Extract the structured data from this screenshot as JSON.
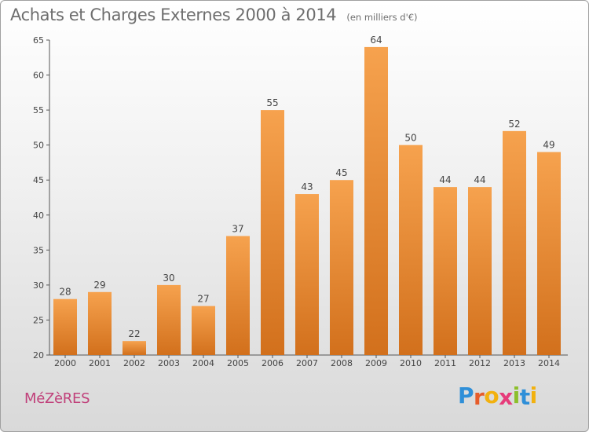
{
  "chart_data": {
    "type": "bar",
    "title": "Achats et Charges Externes 2000 à 2014",
    "subtitle": "(en milliers d'€)",
    "categories": [
      "2000",
      "2001",
      "2002",
      "2003",
      "2004",
      "2005",
      "2006",
      "2007",
      "2008",
      "2009",
      "2010",
      "2011",
      "2012",
      "2013",
      "2014"
    ],
    "values": [
      28,
      29,
      22,
      30,
      27,
      37,
      55,
      43,
      45,
      64,
      50,
      44,
      44,
      52,
      49
    ],
    "ylim": [
      20,
      65
    ],
    "yticks": [
      20,
      25,
      30,
      35,
      40,
      45,
      50,
      55,
      60,
      65
    ],
    "xlabel": "",
    "ylabel": "",
    "grid": false,
    "bar_color_top": "#f6a24e",
    "bar_color_bottom": "#d2701c"
  },
  "commune": "MéZèRES",
  "logo": {
    "letters": [
      "P",
      "r",
      "o",
      "x",
      "i",
      "t",
      "i"
    ],
    "colors": [
      "#2f8fd8",
      "#e65c2a",
      "#f2b10f",
      "#e63b7a",
      "#8cbf2a",
      "#2f8fd8",
      "#f2b10f"
    ]
  }
}
